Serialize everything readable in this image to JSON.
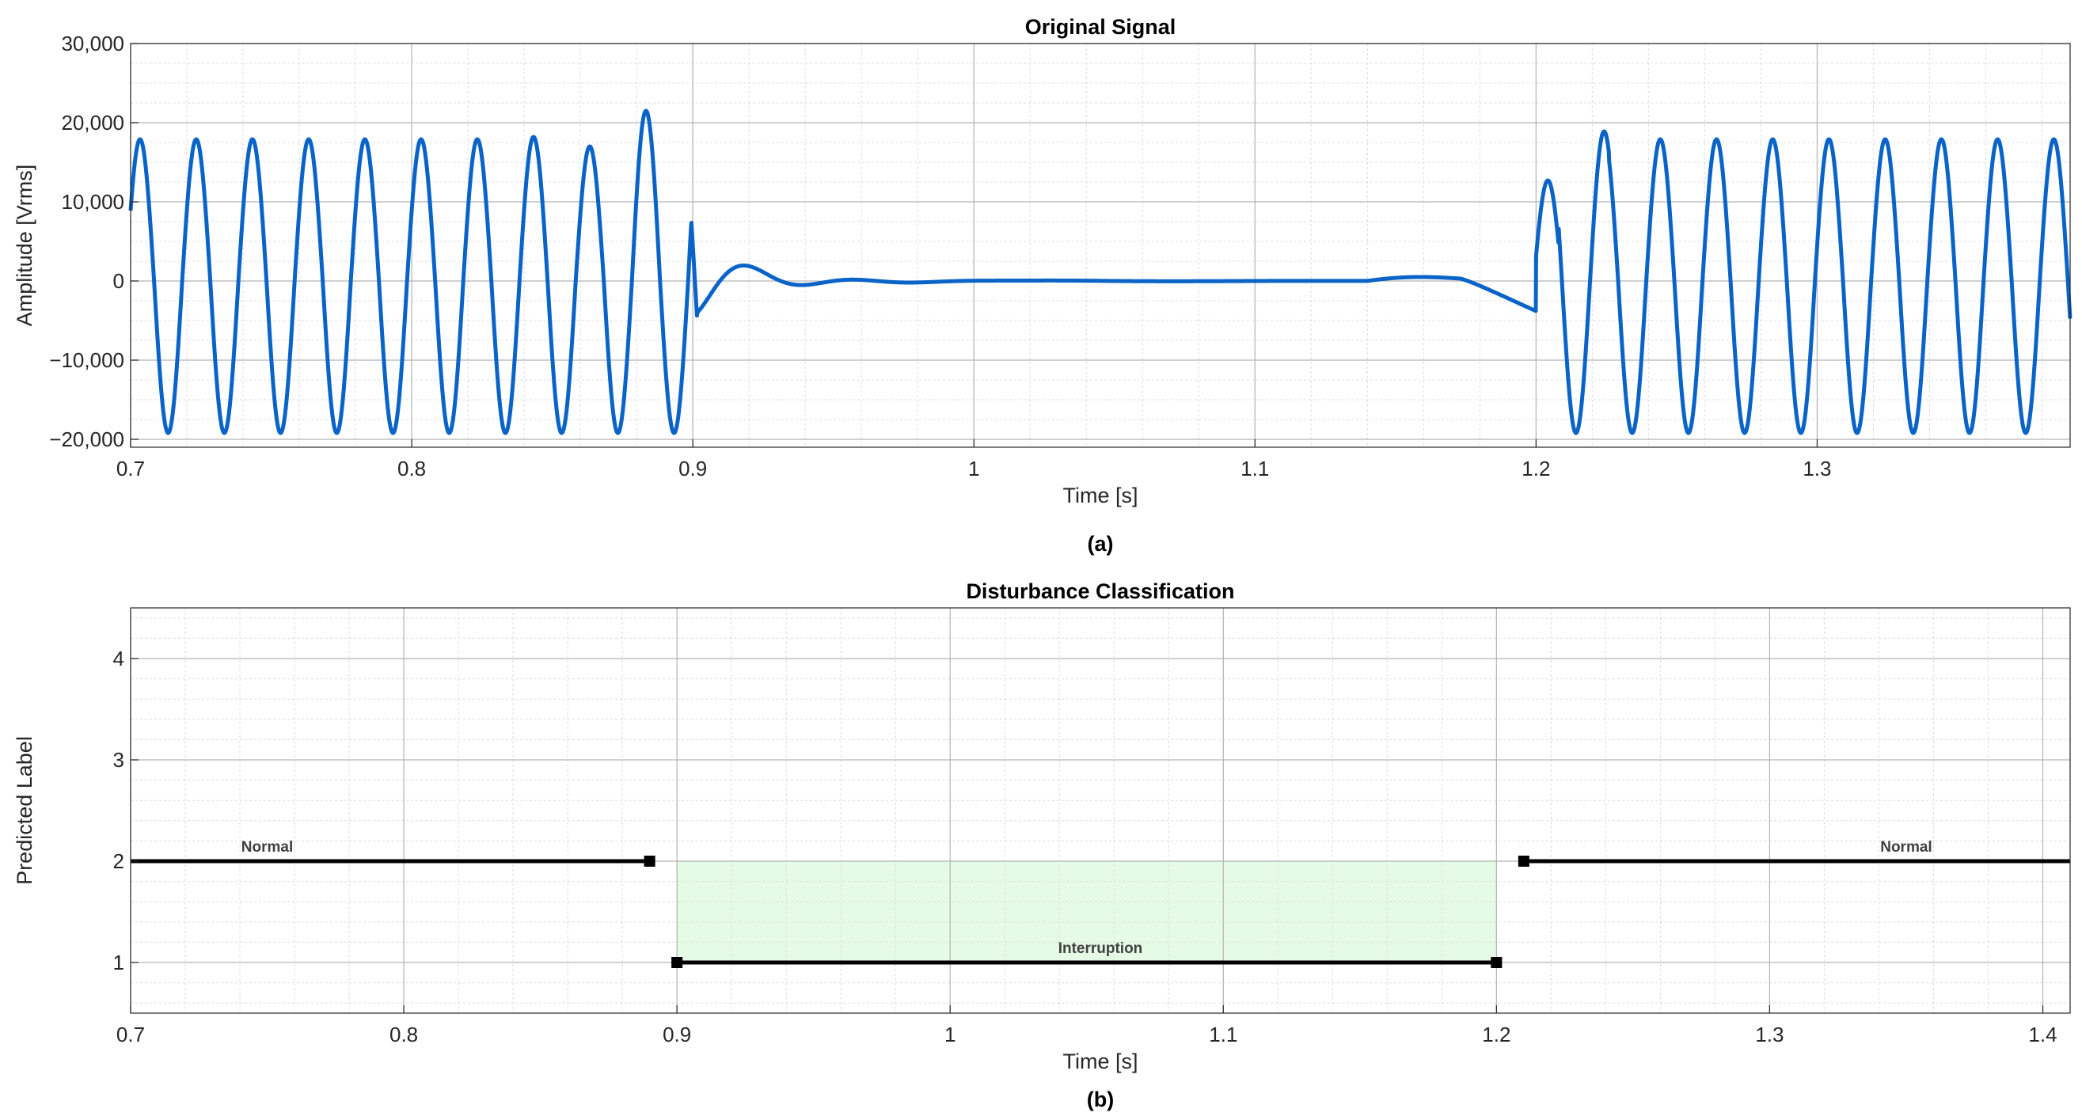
{
  "chart_data": [
    {
      "type": "line",
      "title": "Original Signal",
      "xlabel": "Time [s]",
      "ylabel": "Amplitude [Vrms]",
      "caption": "(a)",
      "xlim": [
        0.7,
        1.39
      ],
      "ylim": [
        -21000,
        30000
      ],
      "x_ticks": [
        0.7,
        0.8,
        0.9,
        1.0,
        1.1,
        1.2,
        1.3
      ],
      "x_tick_labels": [
        "0.7",
        "0.8",
        "0.9",
        "1",
        "1.1",
        "1.2",
        "1.3"
      ],
      "y_ticks": [
        -20000,
        -10000,
        0,
        10000,
        20000,
        30000
      ],
      "y_tick_labels": [
        "−20,000",
        "−10,000",
        "0",
        "10,000",
        "20,000",
        "30,000"
      ],
      "grid": true,
      "minor_grid": true,
      "line_color": "#0a64c8",
      "series": [
        {
          "kind": "sinusoid",
          "frequency_hz": 50,
          "positive_peak": 17900,
          "negative_peak": -19200,
          "segments": [
            {
              "t_start": 0.7,
              "t_end": 0.8995,
              "description_values": {
                "late_peaks": [
                  18000,
                  18200,
                  17000,
                  21500
                ]
              }
            },
            {
              "t_start": 0.9,
              "t_end": 1.2,
              "transient_peak": 2700,
              "transient_trough": -4500
            },
            {
              "t_start": 1.2,
              "t_end": 1.39,
              "first_peaks": [
                12700,
                18900
              ]
            }
          ]
        }
      ]
    },
    {
      "type": "line",
      "title": "Disturbance Classification",
      "xlabel": "Time [s]",
      "ylabel": "Predicted Label",
      "caption": "(b)",
      "xlim": [
        0.7,
        1.41
      ],
      "ylim": [
        0.5,
        4.5
      ],
      "x_ticks": [
        0.7,
        0.8,
        0.9,
        1.0,
        1.1,
        1.2,
        1.3,
        1.4
      ],
      "x_tick_labels": [
        "0.7",
        "0.8",
        "0.9",
        "1",
        "1.1",
        "1.2",
        "1.3",
        "1.4"
      ],
      "y_ticks": [
        1,
        2,
        3,
        4
      ],
      "y_tick_labels": [
        "1",
        "2",
        "3",
        "4"
      ],
      "grid": true,
      "minor_grid": true,
      "highlight_region": {
        "x": [
          0.9,
          1.2
        ],
        "y": [
          1,
          2
        ],
        "color": "#e6fbe6"
      },
      "segments": [
        {
          "label": "Normal",
          "y": 2,
          "x_start": 0.7,
          "x_end": 0.89,
          "end_marker": true,
          "label_x": 0.75
        },
        {
          "label": "Interruption",
          "y": 1,
          "x_start": 0.9,
          "x_end": 1.2,
          "start_marker": true,
          "end_marker": true,
          "label_x": 1.055
        },
        {
          "label": "Normal",
          "y": 2,
          "x_start": 1.21,
          "x_end": 1.41,
          "start_marker": true,
          "label_x": 1.35
        }
      ]
    }
  ]
}
